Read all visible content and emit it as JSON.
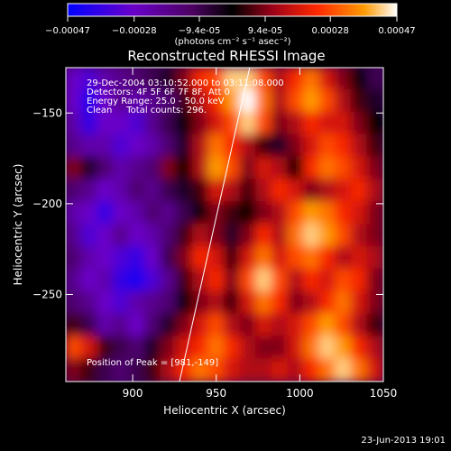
{
  "colorbar": {
    "ticks": [
      "-0.00047",
      "-0.00028",
      "-9.4e-05",
      "9.4e-05",
      "0.00028",
      "0.00047"
    ],
    "tick_values": [
      -0.00047,
      -0.00028,
      -9.4e-05,
      9.4e-05,
      0.00028,
      0.00047
    ],
    "range": [
      -0.00047,
      0.00047
    ],
    "units": "(photons cm⁻² s⁻¹ asec⁻²)",
    "colors": [
      "#0000ff",
      "#6a00c8",
      "#4b0060",
      "#000000",
      "#9a0018",
      "#ff2a00",
      "#ff9a00",
      "#ffffff"
    ]
  },
  "title": "Reconstructed RHESSI Image",
  "annotations": {
    "time_range": "29-Dec-2004 03:10:52.000 to 03:11:08.000",
    "detectors": "Detectors: 4F 5F 6F 7F 8F, Att 0",
    "energy": "Energy Range: 25.0 - 50.0 keV",
    "method": "Clean     Total counts: 296.",
    "peak": "Position of Peak = [981,-149]"
  },
  "footer_date": "23-Jun-2013 19:01",
  "chart_data": {
    "type": "heatmap",
    "title": "Reconstructed RHESSI Image",
    "xlabel": "Heliocentric X (arcsec)",
    "ylabel": "Heliocentric Y (arcsec)",
    "xlim": [
      860,
      1050
    ],
    "ylim": [
      -298,
      -125
    ],
    "xticks": [
      900,
      950,
      1000,
      1050
    ],
    "yticks": [
      -150,
      -200,
      -250
    ],
    "colorbar_range": [
      -0.00047,
      0.00047
    ],
    "peak_position": [
      981,
      -149
    ],
    "limb_line": [
      [
        928,
        -298
      ],
      [
        970,
        -125
      ]
    ],
    "grid": [
      [
        -0.6,
        -0.7,
        -0.5,
        -0.4,
        -0.3,
        -0.2,
        -0.1,
        0.2,
        0.5,
        0.6,
        0.9,
        0.9,
        0.6,
        0.3,
        0.5,
        0.7,
        0.4,
        0.2,
        0.0,
        -0.2
      ],
      [
        -0.6,
        -0.9,
        -0.6,
        -0.4,
        -0.5,
        -0.4,
        -0.3,
        0.1,
        0.3,
        0.5,
        0.8,
        1.0,
        0.7,
        0.3,
        0.6,
        0.8,
        0.6,
        0.3,
        0.1,
        -0.1
      ],
      [
        -0.5,
        -0.8,
        -0.6,
        -0.6,
        -0.7,
        -0.4,
        -0.2,
        0.0,
        0.2,
        0.4,
        0.6,
        0.9,
        0.6,
        0.2,
        0.3,
        0.5,
        0.4,
        0.4,
        0.2,
        0.0
      ],
      [
        -0.4,
        -0.5,
        -0.5,
        -0.7,
        -0.6,
        -0.5,
        -0.3,
        -0.1,
        0.3,
        0.7,
        0.5,
        0.3,
        0.1,
        -0.1,
        0.2,
        0.4,
        0.6,
        0.5,
        0.3,
        0.1
      ],
      [
        0.2,
        -0.1,
        -0.3,
        -0.5,
        -0.4,
        -0.3,
        0.2,
        0.0,
        0.3,
        0.8,
        0.6,
        0.2,
        0.4,
        0.3,
        0.0,
        0.5,
        0.7,
        0.6,
        0.4,
        0.2
      ],
      [
        -0.3,
        -0.4,
        -0.6,
        -0.5,
        -0.3,
        -0.4,
        -0.2,
        -0.1,
        0.1,
        0.4,
        0.3,
        0.1,
        0.3,
        0.5,
        0.4,
        0.2,
        0.3,
        0.4,
        0.5,
        0.3
      ],
      [
        -0.5,
        -0.6,
        -0.8,
        -0.6,
        -0.5,
        -0.3,
        -0.4,
        -0.2,
        0.0,
        0.2,
        0.1,
        0.0,
        0.2,
        0.3,
        0.6,
        0.8,
        0.7,
        0.5,
        0.4,
        0.2
      ],
      [
        -0.4,
        -0.7,
        -0.6,
        -0.4,
        -0.6,
        -0.5,
        -0.3,
        0.1,
        0.3,
        0.2,
        -0.1,
        0.2,
        0.5,
        0.3,
        0.7,
        0.9,
        0.8,
        0.6,
        0.3,
        0.2
      ],
      [
        -0.3,
        -0.5,
        -0.6,
        -0.7,
        -0.8,
        -0.6,
        -0.2,
        0.2,
        0.5,
        0.4,
        0.1,
        0.4,
        0.7,
        0.4,
        0.6,
        0.7,
        0.5,
        0.3,
        0.4,
        0.3
      ],
      [
        -0.4,
        -0.6,
        -0.5,
        -0.8,
        -0.9,
        -0.7,
        -0.4,
        0.1,
        0.3,
        0.5,
        0.2,
        0.6,
        0.9,
        0.6,
        0.3,
        0.5,
        0.4,
        0.6,
        0.5,
        0.2
      ],
      [
        -0.3,
        -0.4,
        -0.6,
        -0.7,
        -0.5,
        -0.4,
        -0.3,
        0.0,
        0.2,
        0.3,
        0.1,
        0.4,
        0.7,
        0.5,
        0.2,
        0.3,
        0.5,
        0.7,
        0.4,
        0.2
      ],
      [
        0.1,
        -0.2,
        -0.5,
        -0.4,
        -0.6,
        -0.3,
        -0.1,
        0.2,
        0.4,
        0.6,
        0.3,
        0.2,
        0.4,
        0.3,
        0.4,
        0.6,
        0.8,
        0.6,
        0.3,
        0.1
      ],
      [
        0.6,
        0.4,
        0.1,
        -0.2,
        -0.3,
        -0.1,
        0.2,
        0.4,
        0.5,
        0.7,
        0.5,
        0.3,
        0.2,
        0.2,
        0.4,
        0.7,
        0.9,
        0.8,
        0.5,
        0.3
      ],
      [
        0.2,
        0.1,
        -0.2,
        -0.3,
        -0.2,
        0.1,
        0.3,
        0.5,
        0.7,
        0.6,
        0.4,
        0.3,
        0.3,
        0.4,
        0.3,
        0.5,
        0.7,
        0.9,
        0.7,
        0.4
      ]
    ]
  }
}
